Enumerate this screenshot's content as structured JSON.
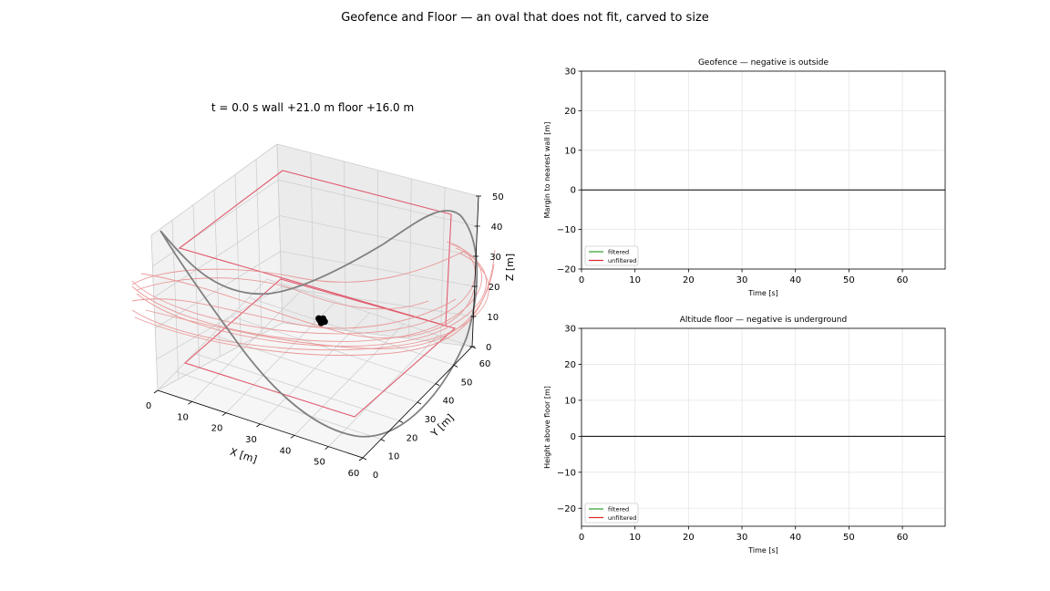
{
  "figure": {
    "title": "Geofence and Floor — an oval that does not fit, carved to size"
  },
  "chart_data": [
    {
      "type": "scatter",
      "projection": "3d",
      "title": "t = 0.0 s   wall +21.0 m   floor +16.0 m",
      "xlabel": "X [m]",
      "ylabel": "Y [m]",
      "zlabel": "Z [m]",
      "xlim": [
        0,
        60
      ],
      "ylim": [
        0,
        60
      ],
      "zlim": [
        0,
        50
      ],
      "xticks": [
        0,
        10,
        20,
        30,
        40,
        50,
        60
      ],
      "yticks": [
        0,
        10,
        20,
        30,
        40,
        50,
        60
      ],
      "zticks": [
        0,
        10,
        20,
        30,
        40,
        50
      ],
      "grid": true,
      "geofence_color": "#e05a6e",
      "path_color": "#808080",
      "trail_color": "#e88a8a",
      "points": [
        {
          "x": 30.5,
          "y": 30.5,
          "z": 16.0
        },
        {
          "x": 31.0,
          "y": 31.5,
          "z": 16.0
        },
        {
          "x": 32.0,
          "y": 30.5,
          "z": 16.0
        },
        {
          "x": 31.5,
          "y": 29.5,
          "z": 16.0
        },
        {
          "x": 30.0,
          "y": 31.0,
          "z": 16.0
        }
      ]
    },
    {
      "type": "line",
      "title": "Geofence — negative is outside",
      "xlabel": "Time [s]",
      "ylabel": "Margin to nearest wall [m]",
      "xlim": [
        0,
        68
      ],
      "ylim": [
        -20,
        30
      ],
      "xticks": [
        0,
        10,
        20,
        30,
        40,
        50,
        60
      ],
      "yticks": [
        -20,
        -10,
        0,
        10,
        20,
        30
      ],
      "grid": true,
      "legend_position": "lower-left",
      "series": [
        {
          "name": "filtered",
          "color": "#2ca02c",
          "x": [],
          "y": []
        },
        {
          "name": "unfiltered",
          "color": "#d62728",
          "x": [],
          "y": []
        }
      ],
      "reference_line": 0
    },
    {
      "type": "line",
      "title": "Altitude floor — negative is underground",
      "xlabel": "Time [s]",
      "ylabel": "Height above floor [m]",
      "xlim": [
        0,
        68
      ],
      "ylim": [
        -25,
        30
      ],
      "xticks": [
        0,
        10,
        20,
        30,
        40,
        50,
        60
      ],
      "yticks": [
        -20,
        -10,
        0,
        10,
        20,
        30
      ],
      "grid": true,
      "legend_position": "lower-left",
      "series": [
        {
          "name": "filtered",
          "color": "#2ca02c",
          "x": [],
          "y": []
        },
        {
          "name": "unfiltered",
          "color": "#d62728",
          "x": [],
          "y": []
        }
      ],
      "reference_line": 0
    }
  ]
}
